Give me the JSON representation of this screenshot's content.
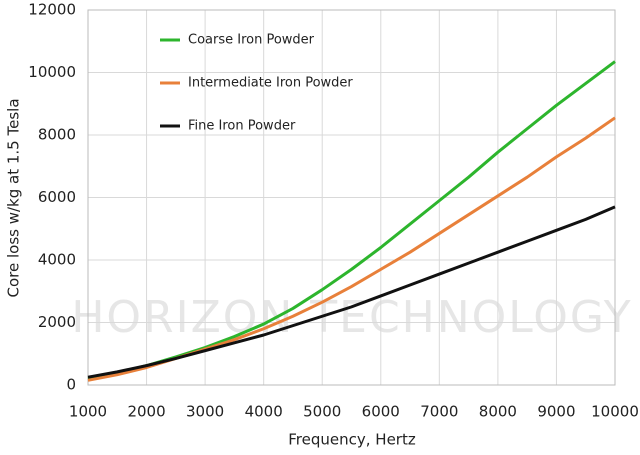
{
  "chart_data": {
    "type": "line",
    "watermark": "HORIZON TECHNOLOGY",
    "xlabel": "Frequency, Hertz",
    "ylabel": "Core loss w/kg at 1.5 Tesla",
    "x": [
      1000,
      1500,
      2000,
      2500,
      3000,
      3500,
      4000,
      4500,
      5000,
      5500,
      6000,
      6500,
      7000,
      7500,
      8000,
      8500,
      9000,
      9500,
      10000
    ],
    "series": [
      {
        "name": "Coarse Iron Powder",
        "color": "#2db52d",
        "values": [
          200,
          380,
          620,
          900,
          1200,
          1550,
          1950,
          2450,
          3050,
          3700,
          4400,
          5150,
          5900,
          6650,
          7450,
          8200,
          8950,
          9650,
          10350
        ]
      },
      {
        "name": "Intermediate Iron Powder",
        "color": "#e8803a",
        "values": [
          150,
          330,
          560,
          850,
          1150,
          1450,
          1800,
          2200,
          2650,
          3150,
          3700,
          4250,
          4850,
          5450,
          6050,
          6650,
          7300,
          7900,
          8550
        ]
      },
      {
        "name": "Fine Iron Powder",
        "color": "#111111",
        "values": [
          250,
          420,
          620,
          850,
          1100,
          1350,
          1600,
          1900,
          2200,
          2500,
          2850,
          3200,
          3550,
          3900,
          4250,
          4600,
          4950,
          5300,
          5700
        ]
      }
    ],
    "xlim": [
      1000,
      10000
    ],
    "xticks": [
      1000,
      2000,
      3000,
      4000,
      5000,
      6000,
      7000,
      8000,
      9000,
      10000
    ],
    "ylim": [
      0,
      12000
    ],
    "yticks": [
      0,
      2000,
      4000,
      6000,
      8000,
      10000,
      12000
    ],
    "grid": true,
    "legend": "upper-left"
  }
}
